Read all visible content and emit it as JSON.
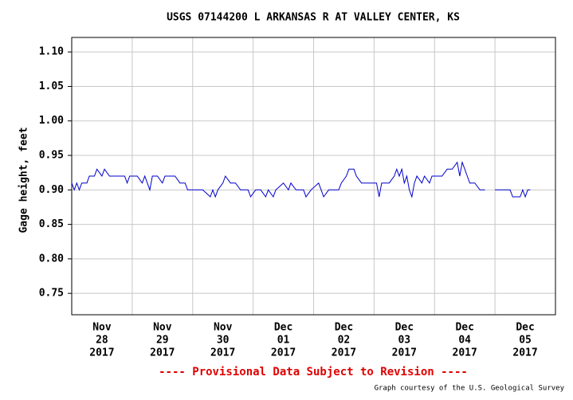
{
  "chart_data": {
    "type": "line",
    "title": "USGS 07144200 L ARKANSAS R AT VALLEY CENTER, KS",
    "ylabel": "Gage height, feet",
    "note": "---- Provisional Data Subject to Revision ----",
    "credit": "Graph courtesy of the U.S. Geological Survey",
    "ylim": [
      0.719,
      1.121
    ],
    "yticks": [
      {
        "value": 0.75,
        "label": "0.75"
      },
      {
        "value": 0.8,
        "label": "0.80"
      },
      {
        "value": 0.85,
        "label": "0.85"
      },
      {
        "value": 0.9,
        "label": "0.90"
      },
      {
        "value": 0.95,
        "label": "0.95"
      },
      {
        "value": 1.0,
        "label": "1.00"
      },
      {
        "value": 1.05,
        "label": "1.05"
      },
      {
        "value": 1.1,
        "label": "1.10"
      }
    ],
    "xlim": [
      "2017-11-28T00:00",
      "2017-12-06T00:00"
    ],
    "xticks": [
      {
        "value": "2017-11-28T12:00",
        "label": [
          "Nov",
          "28",
          "2017"
        ]
      },
      {
        "value": "2017-11-29T12:00",
        "label": [
          "Nov",
          "29",
          "2017"
        ]
      },
      {
        "value": "2017-11-30T12:00",
        "label": [
          "Nov",
          "30",
          "2017"
        ]
      },
      {
        "value": "2017-12-01T12:00",
        "label": [
          "Dec",
          "01",
          "2017"
        ]
      },
      {
        "value": "2017-12-02T12:00",
        "label": [
          "Dec",
          "02",
          "2017"
        ]
      },
      {
        "value": "2017-12-03T12:00",
        "label": [
          "Dec",
          "03",
          "2017"
        ]
      },
      {
        "value": "2017-12-04T12:00",
        "label": [
          "Dec",
          "04",
          "2017"
        ]
      },
      {
        "value": "2017-12-05T12:00",
        "label": [
          "Dec",
          "05",
          "2017"
        ]
      }
    ],
    "xgrid": [
      "2017-11-29T00:00",
      "2017-11-30T00:00",
      "2017-12-01T00:00",
      "2017-12-02T00:00",
      "2017-12-03T00:00",
      "2017-12-04T00:00",
      "2017-12-05T00:00"
    ],
    "grid": true,
    "x": [
      "2017-11-28T00:00",
      "2017-11-28T01:00",
      "2017-11-28T02:00",
      "2017-11-28T03:00",
      "2017-11-28T04:00",
      "2017-11-28T06:00",
      "2017-11-28T07:00",
      "2017-11-28T09:00",
      "2017-11-28T10:00",
      "2017-11-28T12:00",
      "2017-11-28T13:00",
      "2017-11-28T15:00",
      "2017-11-28T17:00",
      "2017-11-28T19:00",
      "2017-11-28T21:00",
      "2017-11-28T22:00",
      "2017-11-28T23:00",
      "2017-11-29T02:00",
      "2017-11-29T04:00",
      "2017-11-29T05:00",
      "2017-11-29T07:00",
      "2017-11-29T08:00",
      "2017-11-29T10:00",
      "2017-11-29T12:00",
      "2017-11-29T13:00",
      "2017-11-29T15:00",
      "2017-11-29T17:00",
      "2017-11-29T19:00",
      "2017-11-29T21:00",
      "2017-11-29T22:00",
      "2017-11-29T23:00",
      "2017-11-30T02:00",
      "2017-11-30T04:00",
      "2017-11-30T07:00",
      "2017-11-30T08:00",
      "2017-11-30T09:00",
      "2017-11-30T10:00",
      "2017-11-30T12:00",
      "2017-11-30T13:00",
      "2017-11-30T15:00",
      "2017-11-30T17:00",
      "2017-11-30T19:00",
      "2017-11-30T22:00",
      "2017-11-30T23:00",
      "2017-12-01T01:00",
      "2017-12-01T03:00",
      "2017-12-01T05:00",
      "2017-12-01T06:00",
      "2017-12-01T08:00",
      "2017-12-01T09:00",
      "2017-12-01T12:00",
      "2017-12-01T14:00",
      "2017-12-01T15:00",
      "2017-12-01T17:00",
      "2017-12-01T20:00",
      "2017-12-01T21:00",
      "2017-12-01T23:00",
      "2017-12-02T02:00",
      "2017-12-02T03:00",
      "2017-12-02T04:00",
      "2017-12-02T06:00",
      "2017-12-02T10:00",
      "2017-12-02T11:00",
      "2017-12-02T13:00",
      "2017-12-02T14:00",
      "2017-12-02T16:00",
      "2017-12-02T17:00",
      "2017-12-02T19:00",
      "2017-12-02T22:00",
      "2017-12-03T01:00",
      "2017-12-03T02:00",
      "2017-12-03T03:00",
      "2017-12-03T06:00",
      "2017-12-03T08:00",
      "2017-12-03T09:00",
      "2017-12-03T10:00",
      "2017-12-03T11:00",
      "2017-12-03T12:00",
      "2017-12-03T13:00",
      "2017-12-03T14:00",
      "2017-12-03T15:00",
      "2017-12-03T16:00",
      "2017-12-03T17:00",
      "2017-12-03T19:00",
      "2017-12-03T20:00",
      "2017-12-03T22:00",
      "2017-12-03T23:00",
      "2017-12-04T01:00",
      "2017-12-04T03:00",
      "2017-12-04T05:00",
      "2017-12-04T07:00",
      "2017-12-04T09:00",
      "2017-12-04T10:00",
      "2017-12-04T11:00",
      "2017-12-04T12:00",
      "2017-12-04T13:00",
      "2017-12-04T14:00",
      "2017-12-04T16:00",
      "2017-12-04T18:00",
      "2017-12-04T20:00",
      "2017-12-04T22:00",
      "2017-12-05T00:00",
      "2017-12-05T03:00",
      "2017-12-05T06:00",
      "2017-12-05T07:00",
      "2017-12-05T10:00",
      "2017-12-05T11:00",
      "2017-12-05T12:00",
      "2017-12-05T13:00",
      "2017-12-05T14:00"
    ],
    "series": [
      {
        "color": "#0000cc",
        "values": [
          0.91,
          0.9,
          0.91,
          0.9,
          0.91,
          0.91,
          0.92,
          0.92,
          0.93,
          0.92,
          0.93,
          0.92,
          0.92,
          0.92,
          0.92,
          0.91,
          0.92,
          0.92,
          0.91,
          0.92,
          0.9,
          0.92,
          0.92,
          0.91,
          0.92,
          0.92,
          0.92,
          0.91,
          0.91,
          0.9,
          0.9,
          0.9,
          0.9,
          0.89,
          0.9,
          0.89,
          0.9,
          0.91,
          0.92,
          0.91,
          0.91,
          0.9,
          0.9,
          0.89,
          0.9,
          0.9,
          0.89,
          0.9,
          0.89,
          0.9,
          0.91,
          0.9,
          0.91,
          0.9,
          0.9,
          0.89,
          0.9,
          0.91,
          0.9,
          0.89,
          0.9,
          0.9,
          0.91,
          0.92,
          0.93,
          0.93,
          0.92,
          0.91,
          0.91,
          0.91,
          0.89,
          0.91,
          0.91,
          0.92,
          0.93,
          0.92,
          0.93,
          0.91,
          0.92,
          0.9,
          0.89,
          0.91,
          0.92,
          0.91,
          0.92,
          0.91,
          0.92,
          0.92,
          0.92,
          0.93,
          0.93,
          0.94,
          0.92,
          0.94,
          0.93,
          0.92,
          0.91,
          0.91,
          0.9,
          0.9,
          null,
          0.9,
          0.9,
          0.9,
          0.89,
          0.89,
          0.9,
          0.89,
          0.9,
          0.9
        ]
      }
    ]
  }
}
